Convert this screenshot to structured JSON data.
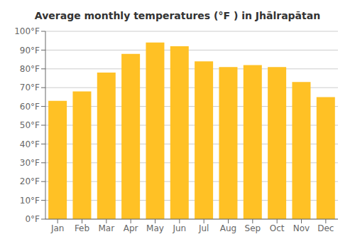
{
  "chart_data": {
    "type": "bar",
    "title": "Average monthly temperatures (°F ) in Jhālrapātan",
    "categories": [
      "Jan",
      "Feb",
      "Mar",
      "Apr",
      "May",
      "Jun",
      "Jul",
      "Aug",
      "Sep",
      "Oct",
      "Nov",
      "Dec"
    ],
    "values": [
      63,
      68,
      78,
      88,
      94,
      92,
      84,
      81,
      82,
      81,
      73,
      65
    ],
    "color": "#FFC125",
    "ylim": [
      0,
      100
    ],
    "yticks": [
      {
        "value": 0,
        "label": "0°F"
      },
      {
        "value": 10,
        "label": "10°F"
      },
      {
        "value": 20,
        "label": "20°F"
      },
      {
        "value": 30,
        "label": "30°F"
      },
      {
        "value": 40,
        "label": "40°F"
      },
      {
        "value": 50,
        "label": "50°F"
      },
      {
        "value": 60,
        "label": "60°F"
      },
      {
        "value": 70,
        "label": "70°F"
      },
      {
        "value": 80,
        "label": "80°F"
      },
      {
        "value": 90,
        "label": "90°F"
      },
      {
        "value": 100,
        "label": "100°F"
      }
    ],
    "grid": true
  }
}
